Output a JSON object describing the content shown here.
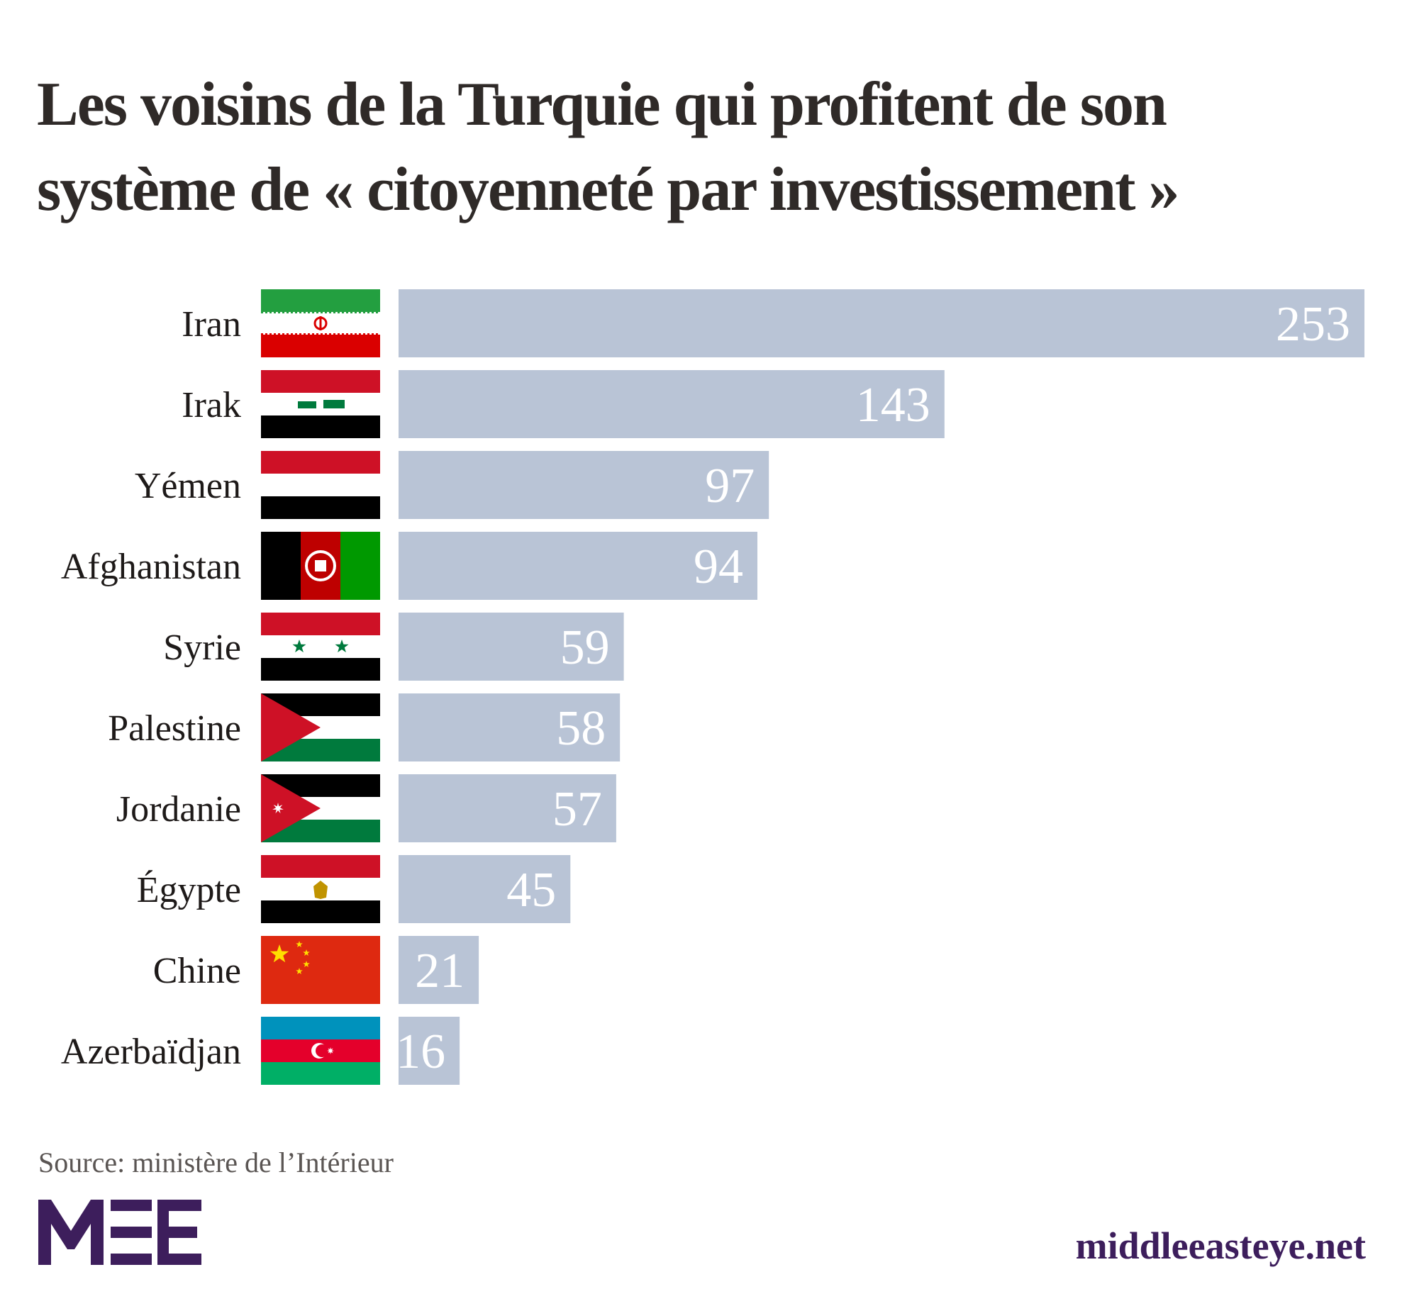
{
  "title_lines": [
    "Les voisins de la Turquie qui profitent de son",
    "système de « citoyenneté par investissement »"
  ],
  "source": "Source: ministère de l’Intérieur",
  "site": "middleeasteye.net",
  "logo": {
    "name": "MEE",
    "color": "#3d1e5c"
  },
  "colors": {
    "bar": "#b9c4d6",
    "value_text": "#ffffff",
    "label_text": "#1e1a19"
  },
  "chart_data": {
    "type": "bar",
    "orientation": "horizontal",
    "title": "Les voisins de la Turquie qui profitent de son système de « citoyenneté par investissement »",
    "categories": [
      "Iran",
      "Irak",
      "Yémen",
      "Afghanistan",
      "Syrie",
      "Palestine",
      "Jordanie",
      "Égypte",
      "Chine",
      "Azerbaïdjan"
    ],
    "values": [
      253,
      143,
      97,
      94,
      59,
      58,
      57,
      45,
      21,
      16
    ],
    "flags": [
      "iran-flag-icon",
      "iraq-flag-icon",
      "yemen-flag-icon",
      "afghanistan-flag-icon",
      "syria-flag-icon",
      "palestine-flag-icon",
      "jordan-flag-icon",
      "egypt-flag-icon",
      "china-flag-icon",
      "azerbaijan-flag-icon"
    ],
    "xlabel": "",
    "ylabel": "",
    "xlim": [
      0,
      253
    ],
    "grid": false,
    "data_labels": true,
    "legend": "none"
  }
}
